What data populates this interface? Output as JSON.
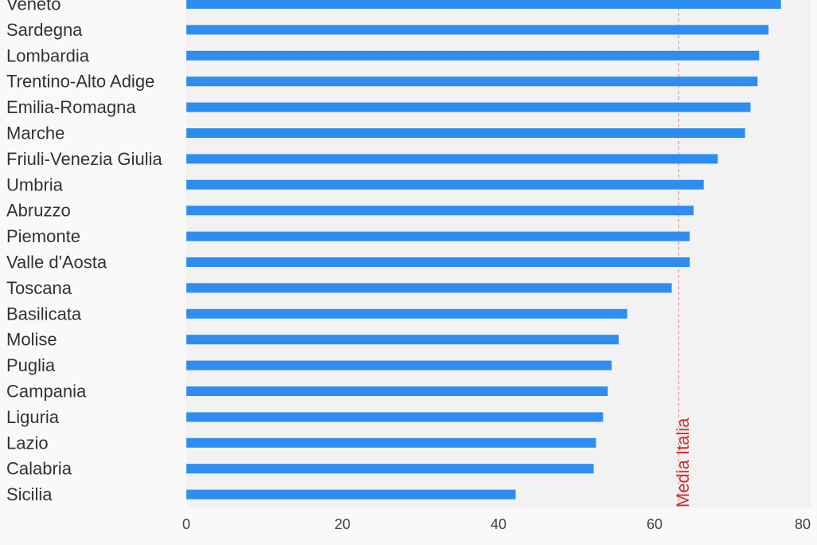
{
  "chart_data": {
    "type": "bar",
    "orientation": "horizontal",
    "categories": [
      "Veneto",
      "Sardegna",
      "Lombardia",
      "Trentino-Alto Adige",
      "Emilia-Romagna",
      "Marche",
      "Friuli-Venezia Giulia",
      "Umbria",
      "Abruzzo",
      "Piemonte",
      "Valle d'Aosta",
      "Toscana",
      "Basilicata",
      "Molise",
      "Puglia",
      "Campania",
      "Liguria",
      "Lazio",
      "Calabria",
      "Sicilia"
    ],
    "values": [
      76.2,
      74.6,
      73.4,
      73.2,
      72.3,
      71.6,
      68.1,
      66.3,
      65.0,
      64.5,
      64.5,
      62.2,
      56.5,
      55.4,
      54.5,
      54.0,
      53.4,
      52.5,
      52.2,
      42.2
    ],
    "xlim": [
      0,
      80
    ],
    "xticks": [
      0,
      20,
      40,
      60,
      80
    ],
    "reference_line": {
      "label": "Media Italia",
      "value": 63.1
    },
    "colors": {
      "bar": "#2e8df0",
      "reference": "#d32f2f",
      "plot_background": "#f2f2f2",
      "page_background": "#f9f9f9"
    },
    "grid": false
  }
}
